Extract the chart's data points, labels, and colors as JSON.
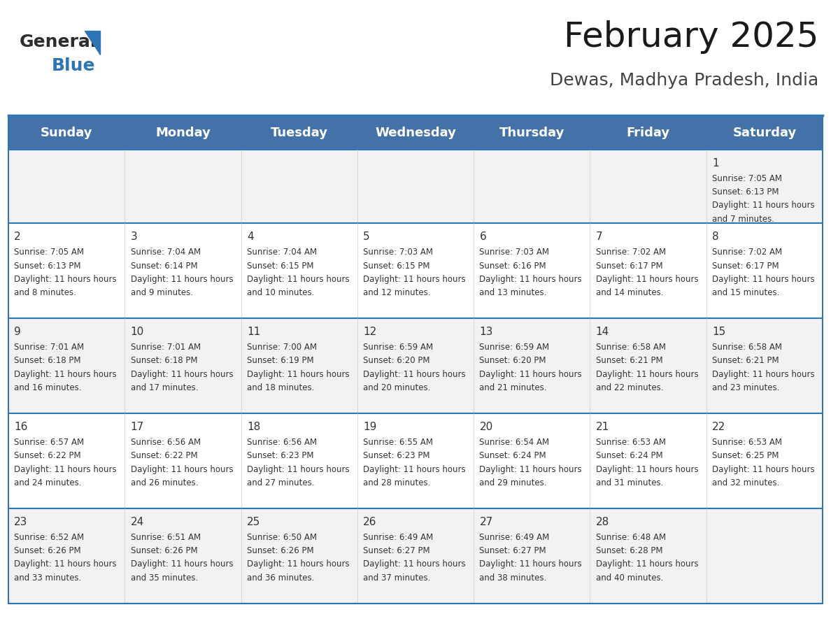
{
  "title": "February 2025",
  "subtitle": "Dewas, Madhya Pradesh, India",
  "header_bg": "#4472a8",
  "header_text": "#ffffff",
  "row_bg_odd": "#f2f2f2",
  "row_bg_even": "#ffffff",
  "day_headers": [
    "Sunday",
    "Monday",
    "Tuesday",
    "Wednesday",
    "Thursday",
    "Friday",
    "Saturday"
  ],
  "title_fontsize": 36,
  "subtitle_fontsize": 18,
  "header_fontsize": 13,
  "cell_fontsize": 8.5,
  "day_num_fontsize": 11,
  "logo_color1": "#2d2d2d",
  "logo_color2": "#2e75b6",
  "divider_color": "#2e75b6",
  "calendar": [
    [
      {
        "day": null,
        "sunrise": null,
        "sunset": null,
        "daylight": null
      },
      {
        "day": null,
        "sunrise": null,
        "sunset": null,
        "daylight": null
      },
      {
        "day": null,
        "sunrise": null,
        "sunset": null,
        "daylight": null
      },
      {
        "day": null,
        "sunrise": null,
        "sunset": null,
        "daylight": null
      },
      {
        "day": null,
        "sunrise": null,
        "sunset": null,
        "daylight": null
      },
      {
        "day": null,
        "sunrise": null,
        "sunset": null,
        "daylight": null
      },
      {
        "day": 1,
        "sunrise": "7:05 AM",
        "sunset": "6:13 PM",
        "daylight": "11 hours and 7 minutes"
      }
    ],
    [
      {
        "day": 2,
        "sunrise": "7:05 AM",
        "sunset": "6:13 PM",
        "daylight": "11 hours and 8 minutes"
      },
      {
        "day": 3,
        "sunrise": "7:04 AM",
        "sunset": "6:14 PM",
        "daylight": "11 hours and 9 minutes"
      },
      {
        "day": 4,
        "sunrise": "7:04 AM",
        "sunset": "6:15 PM",
        "daylight": "11 hours and 10 minutes"
      },
      {
        "day": 5,
        "sunrise": "7:03 AM",
        "sunset": "6:15 PM",
        "daylight": "11 hours and 12 minutes"
      },
      {
        "day": 6,
        "sunrise": "7:03 AM",
        "sunset": "6:16 PM",
        "daylight": "11 hours and 13 minutes"
      },
      {
        "day": 7,
        "sunrise": "7:02 AM",
        "sunset": "6:17 PM",
        "daylight": "11 hours and 14 minutes"
      },
      {
        "day": 8,
        "sunrise": "7:02 AM",
        "sunset": "6:17 PM",
        "daylight": "11 hours and 15 minutes"
      }
    ],
    [
      {
        "day": 9,
        "sunrise": "7:01 AM",
        "sunset": "6:18 PM",
        "daylight": "11 hours and 16 minutes"
      },
      {
        "day": 10,
        "sunrise": "7:01 AM",
        "sunset": "6:18 PM",
        "daylight": "11 hours and 17 minutes"
      },
      {
        "day": 11,
        "sunrise": "7:00 AM",
        "sunset": "6:19 PM",
        "daylight": "11 hours and 18 minutes"
      },
      {
        "day": 12,
        "sunrise": "6:59 AM",
        "sunset": "6:20 PM",
        "daylight": "11 hours and 20 minutes"
      },
      {
        "day": 13,
        "sunrise": "6:59 AM",
        "sunset": "6:20 PM",
        "daylight": "11 hours and 21 minutes"
      },
      {
        "day": 14,
        "sunrise": "6:58 AM",
        "sunset": "6:21 PM",
        "daylight": "11 hours and 22 minutes"
      },
      {
        "day": 15,
        "sunrise": "6:58 AM",
        "sunset": "6:21 PM",
        "daylight": "11 hours and 23 minutes"
      }
    ],
    [
      {
        "day": 16,
        "sunrise": "6:57 AM",
        "sunset": "6:22 PM",
        "daylight": "11 hours and 24 minutes"
      },
      {
        "day": 17,
        "sunrise": "6:56 AM",
        "sunset": "6:22 PM",
        "daylight": "11 hours and 26 minutes"
      },
      {
        "day": 18,
        "sunrise": "6:56 AM",
        "sunset": "6:23 PM",
        "daylight": "11 hours and 27 minutes"
      },
      {
        "day": 19,
        "sunrise": "6:55 AM",
        "sunset": "6:23 PM",
        "daylight": "11 hours and 28 minutes"
      },
      {
        "day": 20,
        "sunrise": "6:54 AM",
        "sunset": "6:24 PM",
        "daylight": "11 hours and 29 minutes"
      },
      {
        "day": 21,
        "sunrise": "6:53 AM",
        "sunset": "6:24 PM",
        "daylight": "11 hours and 31 minutes"
      },
      {
        "day": 22,
        "sunrise": "6:53 AM",
        "sunset": "6:25 PM",
        "daylight": "11 hours and 32 minutes"
      }
    ],
    [
      {
        "day": 23,
        "sunrise": "6:52 AM",
        "sunset": "6:26 PM",
        "daylight": "11 hours and 33 minutes"
      },
      {
        "day": 24,
        "sunrise": "6:51 AM",
        "sunset": "6:26 PM",
        "daylight": "11 hours and 35 minutes"
      },
      {
        "day": 25,
        "sunrise": "6:50 AM",
        "sunset": "6:26 PM",
        "daylight": "11 hours and 36 minutes"
      },
      {
        "day": 26,
        "sunrise": "6:49 AM",
        "sunset": "6:27 PM",
        "daylight": "11 hours and 37 minutes"
      },
      {
        "day": 27,
        "sunrise": "6:49 AM",
        "sunset": "6:27 PM",
        "daylight": "11 hours and 38 minutes"
      },
      {
        "day": 28,
        "sunrise": "6:48 AM",
        "sunset": "6:28 PM",
        "daylight": "11 hours and 40 minutes"
      },
      {
        "day": null,
        "sunrise": null,
        "sunset": null,
        "daylight": null
      }
    ]
  ]
}
